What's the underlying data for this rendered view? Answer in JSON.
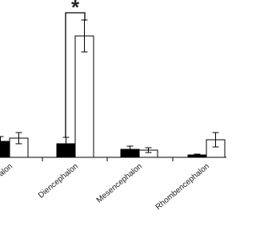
{
  "chart_data": {
    "type": "bar",
    "categories": [
      "alon",
      "Diencephalon",
      "Mesencephalon",
      "Rhombencephalon"
    ],
    "series": [
      {
        "color": "#000000",
        "values": [
          20,
          17,
          10,
          3
        ],
        "errors": [
          6,
          8,
          4,
          1
        ]
      },
      {
        "color": "#ffffff",
        "values": [
          24,
          152,
          9,
          22
        ],
        "errors": [
          7,
          20,
          3,
          9
        ]
      }
    ],
    "ylim": [
      0,
      160
    ],
    "annotation": "*"
  }
}
